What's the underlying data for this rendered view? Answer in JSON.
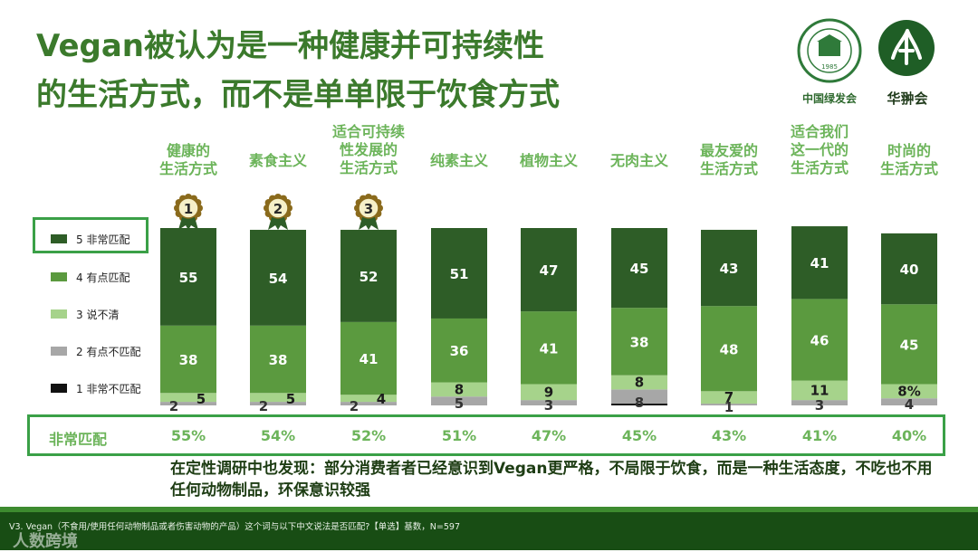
{
  "title": {
    "line1": "Vegan被认为是一种健康并可持续性",
    "line2": "的生活方式，而不是单单限于饮食方式"
  },
  "logos": {
    "left_caption": "中国绿发会",
    "left_year": "1985",
    "right_caption": "华翀会"
  },
  "colors": {
    "very_match": "#2e5d27",
    "somewhat_match": "#5b9a3f",
    "unsure": "#a6d38b",
    "somewhat_not": "#a7a7a7",
    "not_match": "#111111",
    "accent": "#3aa047",
    "label_green": "#6cb45a"
  },
  "match_label": "非常匹配",
  "finding": "在定性调研中也发现：部分消费者者已经意识到Vegan更严格，不局限于饮食，而是一种生活态度，不吃也不用任何动物制品，环保意识较强",
  "footnote": "V3. Vegan（不食用/使用任何动物制品或者伤害动物的产品）这个词与以下中文说法是否匹配?【单选】基数，N=597",
  "watermark": "人数跨境",
  "chart_data": {
    "type": "bar",
    "stacked": true,
    "categories": [
      "健康的生活方式",
      "素食主义",
      "适合可持续性发展的生活方式",
      "纯素主义",
      "植物主义",
      "无肉主义",
      "最友爱的生活方式",
      "适合我们这一代的生活方式",
      "时尚的生活方式"
    ],
    "category_lines": [
      [
        "健康的",
        "生活方式"
      ],
      [
        "素食主义"
      ],
      [
        "适合可持续",
        "性发展的",
        "生活方式"
      ],
      [
        "纯素主义"
      ],
      [
        "植物主义"
      ],
      [
        "无肉主义"
      ],
      [
        "最友爱的",
        "生活方式"
      ],
      [
        "适合我们",
        "这一代的",
        "生活方式"
      ],
      [
        "时尚的",
        "生活方式"
      ]
    ],
    "series": [
      {
        "name": "5 非常匹配",
        "values": [
          55,
          54,
          52,
          51,
          47,
          45,
          43,
          41,
          40
        ]
      },
      {
        "name": "4 有点匹配",
        "values": [
          38,
          38,
          41,
          36,
          41,
          38,
          48,
          46,
          45
        ]
      },
      {
        "name": "3 说不清",
        "values": [
          5,
          5,
          4,
          8,
          9,
          8,
          7,
          11,
          8
        ]
      },
      {
        "name": "2 有点不匹配",
        "values": [
          2,
          2,
          2,
          5,
          3,
          8,
          1,
          3,
          4
        ]
      },
      {
        "name": "1 非常不匹配",
        "values": [
          0,
          0,
          0,
          0,
          0,
          1,
          0,
          0,
          0
        ]
      }
    ],
    "value_labels": {
      "very": [
        "55",
        "54",
        "52",
        "51",
        "47",
        "45",
        "43",
        "41",
        "40"
      ],
      "some": [
        "38",
        "38",
        "41",
        "36",
        "41",
        "38",
        "48",
        "46",
        "45"
      ],
      "unsure": [
        "5",
        "5",
        "4",
        "8",
        "9",
        "8",
        "7",
        "11",
        "8%"
      ],
      "somewhat_not": [
        "2",
        "2",
        "2",
        "5",
        "3",
        "8",
        "1",
        "3",
        "4"
      ]
    },
    "rank_badges": [
      "1",
      "2",
      "3"
    ],
    "very_match_pct": [
      "55%",
      "54%",
      "52%",
      "51%",
      "47%",
      "45%",
      "43%",
      "41%",
      "40%"
    ],
    "ylim": [
      0,
      100
    ]
  }
}
